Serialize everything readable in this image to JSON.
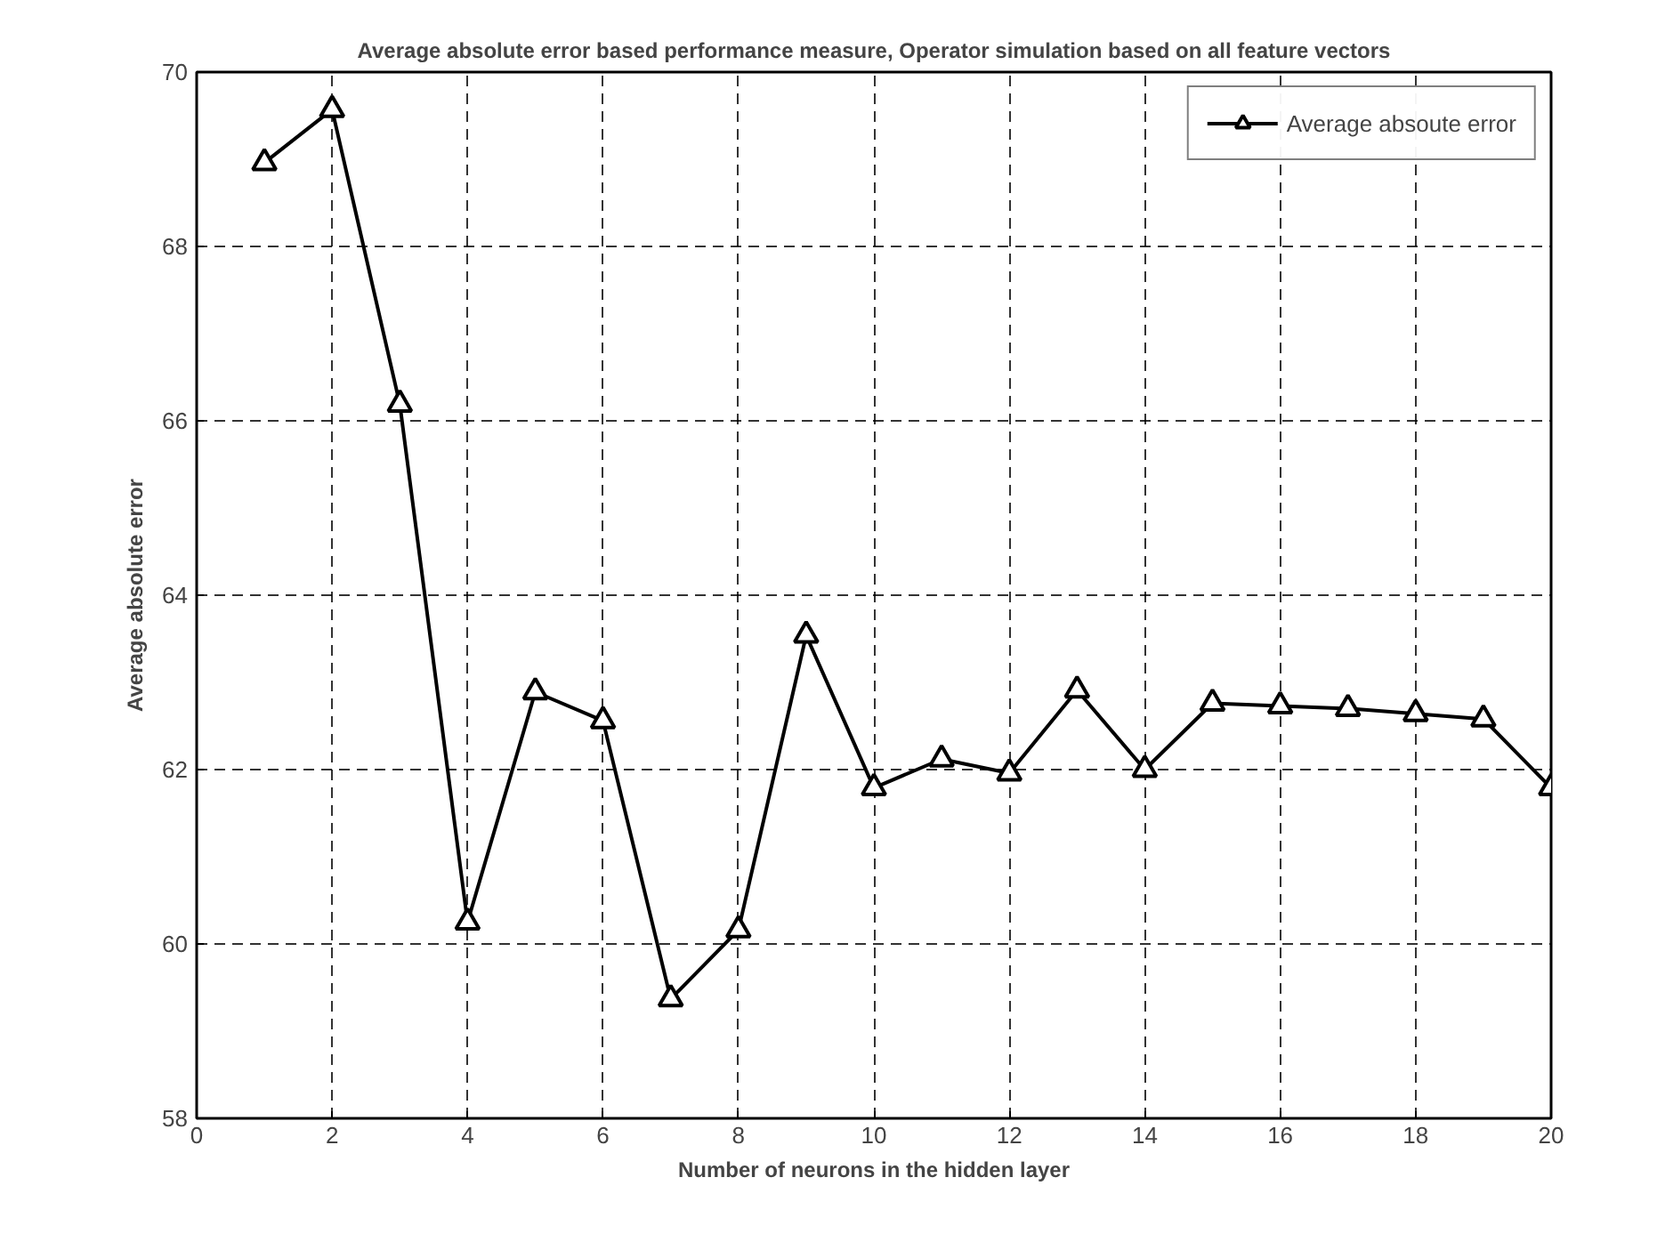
{
  "chart_data": {
    "type": "line",
    "title": "Average absolute error based performance measure, Operator simulation based on all feature vectors",
    "xlabel": "Number of neurons in the hidden layer",
    "ylabel": "Average absolute error",
    "x": [
      1,
      2,
      3,
      4,
      5,
      6,
      7,
      8,
      9,
      10,
      11,
      12,
      13,
      14,
      15,
      16,
      17,
      18,
      19,
      20
    ],
    "series": [
      {
        "name": "Average absoute error",
        "color": "#000000",
        "values": [
          68.96,
          69.57,
          66.19,
          60.25,
          62.89,
          62.56,
          59.37,
          60.16,
          63.54,
          61.79,
          62.12,
          61.96,
          62.91,
          62.0,
          62.76,
          62.73,
          62.7,
          62.64,
          62.58,
          61.79
        ]
      }
    ],
    "xlim": [
      0,
      20
    ],
    "ylim": [
      58,
      70
    ],
    "xticks": [
      0,
      2,
      4,
      6,
      8,
      10,
      12,
      14,
      16,
      18,
      20
    ],
    "yticks": [
      58,
      60,
      62,
      64,
      66,
      68,
      70
    ],
    "grid": true,
    "legend": "top right",
    "marker": "triangle",
    "line_style": "solid"
  }
}
